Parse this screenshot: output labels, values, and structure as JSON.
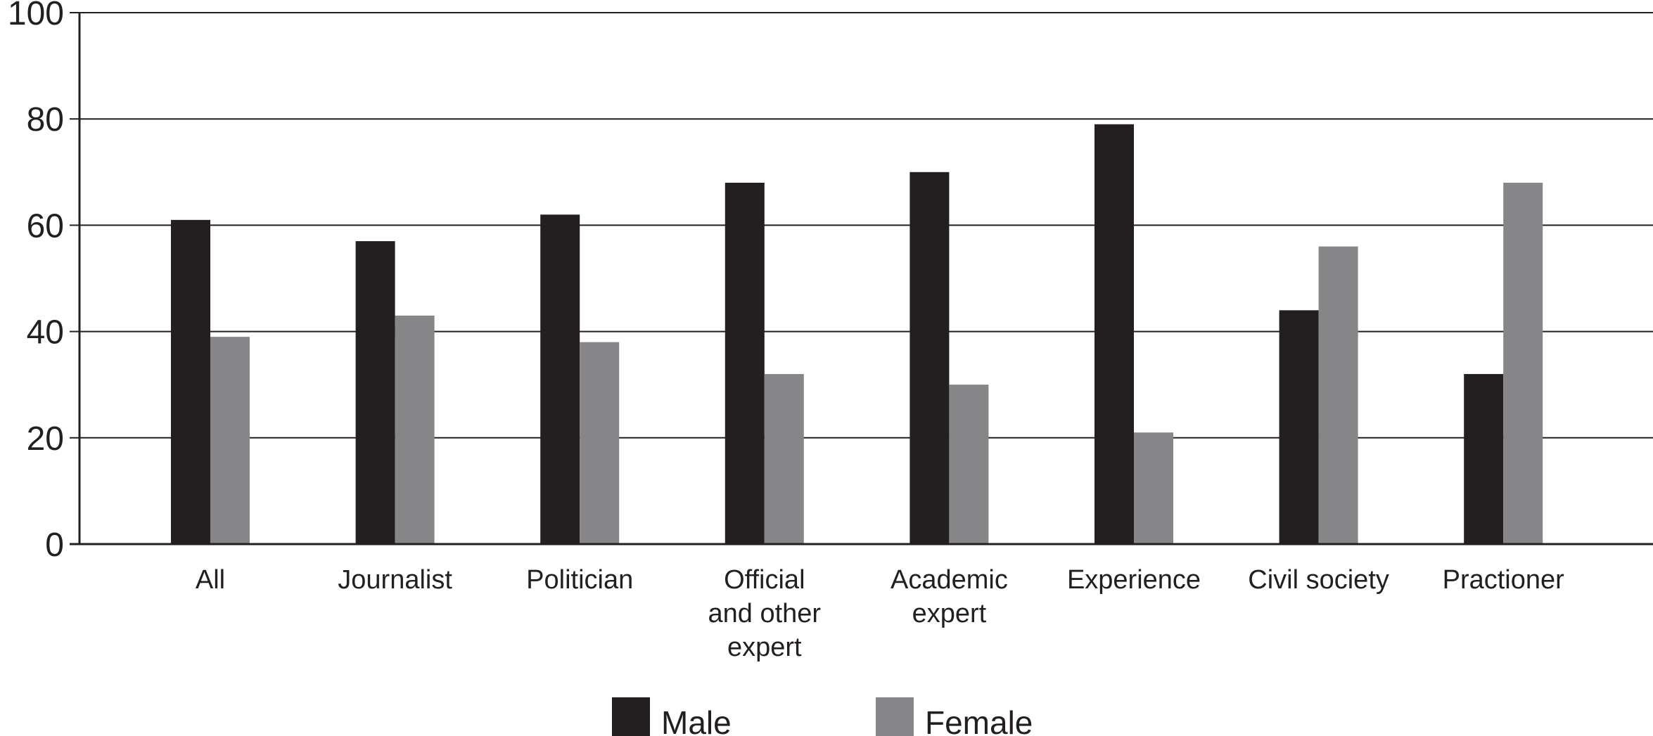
{
  "chart_data": {
    "type": "bar",
    "title": "",
    "xlabel": "",
    "ylabel": "",
    "ylim": [
      0,
      100
    ],
    "yticks": [
      0,
      20,
      40,
      60,
      80,
      100
    ],
    "grid": true,
    "legend_position": "bottom",
    "categories": [
      [
        "All"
      ],
      [
        "Journalist"
      ],
      [
        "Politician"
      ],
      [
        "Official",
        "and other",
        "expert"
      ],
      [
        "Academic",
        "expert"
      ],
      [
        "Experience"
      ],
      [
        "Civil society"
      ],
      [
        "Practioner"
      ]
    ],
    "series": [
      {
        "name": "Male",
        "color": "#231f20",
        "values": [
          61,
          57,
          62,
          68,
          70,
          79,
          44,
          32
        ]
      },
      {
        "name": "Female",
        "color": "#868688",
        "values": [
          39,
          43,
          38,
          32,
          30,
          21,
          56,
          68
        ]
      }
    ]
  }
}
